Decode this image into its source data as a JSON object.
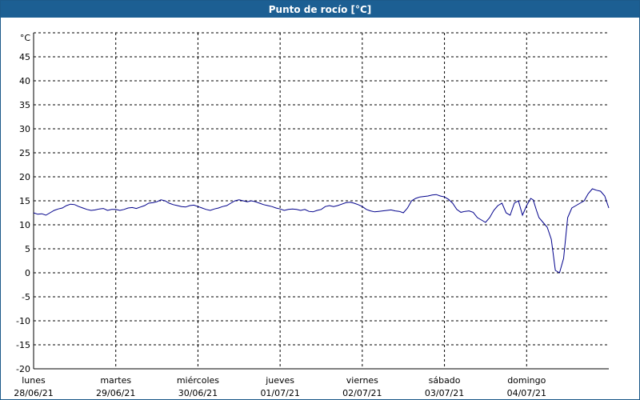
{
  "window": {
    "title": "Punto de rocío [°C]"
  },
  "chart_data": {
    "type": "line",
    "title": "Punto de rocío [°C]",
    "ylabel": "°C",
    "xlabel": "",
    "ylim": [
      -20,
      50
    ],
    "yticks": [
      -20,
      -15,
      -10,
      -5,
      0,
      5,
      10,
      15,
      20,
      25,
      30,
      35,
      40,
      45
    ],
    "xlim": [
      0,
      7
    ],
    "grid": true,
    "colors": {
      "line": "#00008b",
      "grid": "#000000"
    },
    "day_labels": [
      {
        "day": "lunes",
        "date": "28/06/21"
      },
      {
        "day": "martes",
        "date": "29/06/21"
      },
      {
        "day": "miércoles",
        "date": "30/06/21"
      },
      {
        "day": "jueves",
        "date": "01/07/21"
      },
      {
        "day": "viernes",
        "date": "02/07/21"
      },
      {
        "day": "sábado",
        "date": "03/07/21"
      },
      {
        "day": "domingo",
        "date": "04/07/21"
      }
    ],
    "series": [
      {
        "x": [
          0.0,
          0.05,
          0.1,
          0.15,
          0.2,
          0.25,
          0.3,
          0.35,
          0.4,
          0.45,
          0.5,
          0.55,
          0.6,
          0.65,
          0.7,
          0.75,
          0.8,
          0.85,
          0.9,
          0.95,
          1.0,
          1.05,
          1.1,
          1.15,
          1.2,
          1.25,
          1.3,
          1.35,
          1.4,
          1.45,
          1.5,
          1.55,
          1.6,
          1.65,
          1.7,
          1.75,
          1.8,
          1.85,
          1.9,
          1.95,
          2.0,
          2.05,
          2.1,
          2.15,
          2.2,
          2.25,
          2.3,
          2.35,
          2.4,
          2.45,
          2.5,
          2.55,
          2.6,
          2.65,
          2.7,
          2.75,
          2.8,
          2.85,
          2.9,
          2.95,
          3.0,
          3.05,
          3.1,
          3.15,
          3.2,
          3.25,
          3.3,
          3.35,
          3.4,
          3.45,
          3.5,
          3.55,
          3.6,
          3.65,
          3.7,
          3.75,
          3.8,
          3.85,
          3.9,
          3.95,
          4.0,
          4.05,
          4.1,
          4.15,
          4.2,
          4.25,
          4.3,
          4.35,
          4.4,
          4.45,
          4.5,
          4.55,
          4.6,
          4.65,
          4.7,
          4.75,
          4.8,
          4.85,
          4.9,
          4.95,
          5.0,
          5.05,
          5.1,
          5.15,
          5.2,
          5.25,
          5.3,
          5.35,
          5.4,
          5.45,
          5.5,
          5.55,
          5.6,
          5.65,
          5.7,
          5.75,
          5.8,
          5.85,
          5.9,
          5.95,
          6.0,
          6.05,
          6.08,
          6.12,
          6.15,
          6.2,
          6.25,
          6.3,
          6.35,
          6.4,
          6.45,
          6.5,
          6.55,
          6.6,
          6.65,
          6.7,
          6.75,
          6.8,
          6.85,
          6.9,
          6.95,
          7.0
        ],
        "y": [
          12.5,
          12.2,
          12.3,
          12.0,
          12.5,
          13.0,
          13.3,
          13.5,
          14.0,
          14.3,
          14.2,
          13.8,
          13.5,
          13.2,
          13.0,
          13.1,
          13.3,
          13.4,
          13.0,
          13.2,
          13.2,
          13.0,
          13.2,
          13.5,
          13.6,
          13.4,
          13.7,
          14.0,
          14.5,
          14.6,
          14.8,
          15.2,
          15.0,
          14.5,
          14.2,
          14.0,
          13.8,
          13.7,
          14.0,
          14.1,
          13.8,
          13.5,
          13.2,
          13.0,
          13.3,
          13.5,
          13.8,
          14.0,
          14.5,
          15.0,
          15.2,
          15.0,
          14.8,
          15.0,
          14.8,
          14.5,
          14.2,
          14.0,
          13.8,
          13.5,
          13.3,
          13.0,
          13.2,
          13.3,
          13.2,
          13.0,
          13.2,
          12.8,
          12.7,
          13.0,
          13.2,
          13.8,
          14.0,
          13.8,
          14.0,
          14.3,
          14.6,
          14.7,
          14.5,
          14.2,
          13.8,
          13.2,
          12.9,
          12.7,
          12.8,
          12.9,
          13.0,
          13.1,
          12.9,
          12.8,
          12.5,
          13.5,
          15.0,
          15.5,
          15.8,
          15.9,
          16.0,
          16.2,
          16.3,
          16.0,
          15.8,
          15.3,
          14.5,
          13.2,
          12.6,
          12.8,
          12.9,
          12.6,
          11.5,
          11.0,
          10.5,
          11.5,
          13.0,
          14.0,
          14.5,
          12.5,
          12.0,
          14.5,
          15.0,
          12.0,
          14.0,
          15.5,
          15.2,
          13.0,
          11.5,
          10.5,
          9.5,
          7.0,
          0.5,
          0.0,
          3.0,
          11.5,
          13.5,
          14.0,
          14.5,
          15.0,
          16.5,
          17.5,
          17.2,
          17.0,
          16.0,
          13.5
        ]
      }
    ]
  }
}
